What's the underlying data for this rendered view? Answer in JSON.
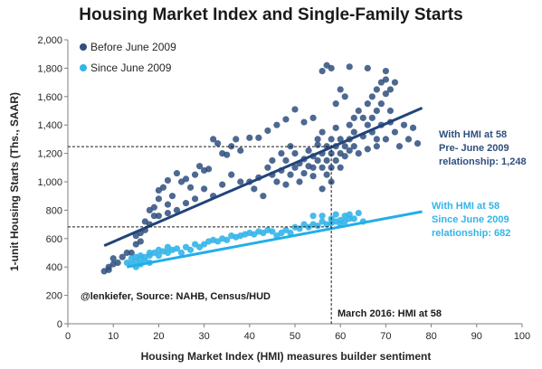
{
  "chart_data": {
    "type": "scatter",
    "title": "Housing Market Index and Single-Family  Starts",
    "xlabel": "Housing  Market Index (HMI) measures builder sentiment",
    "ylabel": "1-unit Housing Starts (Ths., SAAR)",
    "xlim": [
      0,
      100
    ],
    "ylim": [
      0,
      2000
    ],
    "x_ticks": [
      "0",
      "10",
      "20",
      "30",
      "40",
      "50",
      "60",
      "70",
      "80",
      "90",
      "100"
    ],
    "y_ticks": [
      "0",
      "200",
      "400",
      "600",
      "800",
      "1,000",
      "1,200",
      "1,400",
      "1,600",
      "1,800",
      "2,000"
    ],
    "grid": false,
    "legend_position": "top-left",
    "series": [
      {
        "name": "Before June 2009",
        "color": "#2e4f7e",
        "points": [
          [
            8,
            370
          ],
          [
            9,
            380
          ],
          [
            9,
            400
          ],
          [
            10,
            420
          ],
          [
            10,
            460
          ],
          [
            11,
            430
          ],
          [
            12,
            470
          ],
          [
            13,
            500
          ],
          [
            14,
            500
          ],
          [
            15,
            560
          ],
          [
            15,
            620
          ],
          [
            16,
            640
          ],
          [
            16,
            580
          ],
          [
            17,
            660
          ],
          [
            17,
            720
          ],
          [
            18,
            800
          ],
          [
            18,
            700
          ],
          [
            19,
            760
          ],
          [
            19,
            820
          ],
          [
            20,
            880
          ],
          [
            20,
            940
          ],
          [
            21,
            960
          ],
          [
            22,
            1010
          ],
          [
            22,
            840
          ],
          [
            23,
            900
          ],
          [
            24,
            1060
          ],
          [
            25,
            1000
          ],
          [
            26,
            1020
          ],
          [
            27,
            960
          ],
          [
            28,
            1050
          ],
          [
            29,
            1110
          ],
          [
            30,
            1080
          ],
          [
            31,
            1090
          ],
          [
            32,
            1300
          ],
          [
            33,
            1270
          ],
          [
            34,
            1200
          ],
          [
            35,
            1190
          ],
          [
            36,
            1250
          ],
          [
            37,
            1300
          ],
          [
            38,
            1220
          ],
          [
            40,
            1310
          ],
          [
            42,
            1310
          ],
          [
            44,
            1360
          ],
          [
            46,
            1400
          ],
          [
            48,
            1440
          ],
          [
            50,
            1510
          ],
          [
            52,
            1420
          ],
          [
            54,
            1450
          ],
          [
            56,
            1780
          ],
          [
            57,
            1820
          ],
          [
            58,
            1800
          ],
          [
            62,
            1810
          ],
          [
            66,
            1800
          ],
          [
            70,
            1780
          ],
          [
            40,
            1000
          ],
          [
            41,
            950
          ],
          [
            42,
            1030
          ],
          [
            43,
            900
          ],
          [
            44,
            1100
          ],
          [
            45,
            1050
          ],
          [
            46,
            1000
          ],
          [
            47,
            1080
          ],
          [
            48,
            1150
          ],
          [
            48,
            980
          ],
          [
            49,
            1050
          ],
          [
            50,
            1100
          ],
          [
            50,
            1200
          ],
          [
            51,
            1000
          ],
          [
            51,
            1130
          ],
          [
            52,
            1160
          ],
          [
            52,
            1060
          ],
          [
            53,
            1220
          ],
          [
            53,
            1110
          ],
          [
            54,
            1180
          ],
          [
            54,
            1040
          ],
          [
            55,
            1150
          ],
          [
            55,
            1260
          ],
          [
            55,
            1300
          ],
          [
            56,
            1100
          ],
          [
            56,
            1200
          ],
          [
            56,
            1350
          ],
          [
            57,
            1150
          ],
          [
            57,
            1250
          ],
          [
            57,
            1050
          ],
          [
            58,
            1200
          ],
          [
            58,
            1300
          ],
          [
            58,
            1100
          ],
          [
            59,
            1250
          ],
          [
            59,
            1150
          ],
          [
            59,
            1380
          ],
          [
            60,
            1200
          ],
          [
            60,
            1300
          ],
          [
            61,
            1250
          ],
          [
            61,
            1180
          ],
          [
            62,
            1220
          ],
          [
            62,
            1300
          ],
          [
            63,
            1250
          ],
          [
            63,
            1350
          ],
          [
            64,
            1200
          ],
          [
            64,
            1500
          ],
          [
            65,
            1450
          ],
          [
            65,
            1320
          ],
          [
            66,
            1550
          ],
          [
            66,
            1230
          ],
          [
            67,
            1600
          ],
          [
            67,
            1350
          ],
          [
            68,
            1650
          ],
          [
            68,
            1250
          ],
          [
            69,
            1700
          ],
          [
            69,
            1400
          ],
          [
            70,
            1720
          ],
          [
            70,
            1300
          ],
          [
            71,
            1650
          ],
          [
            71,
            1420
          ],
          [
            72,
            1700
          ],
          [
            72,
            1350
          ],
          [
            73,
            1250
          ],
          [
            60,
            1100
          ],
          [
            58,
            1000
          ],
          [
            56,
            950
          ],
          [
            54,
            1100
          ],
          [
            45,
            1150
          ],
          [
            47,
            1200
          ],
          [
            49,
            1250
          ],
          [
            38,
            1000
          ],
          [
            36,
            1050
          ],
          [
            34,
            980
          ],
          [
            32,
            900
          ],
          [
            30,
            950
          ],
          [
            28,
            880
          ],
          [
            26,
            850
          ],
          [
            24,
            800
          ],
          [
            22,
            780
          ],
          [
            20,
            760
          ],
          [
            63,
            1450
          ],
          [
            62,
            1400
          ],
          [
            61,
            1600
          ],
          [
            60,
            1650
          ],
          [
            59,
            1550
          ],
          [
            68,
            1300
          ],
          [
            74,
            1400
          ],
          [
            75,
            1300
          ],
          [
            76,
            1380
          ],
          [
            77,
            1270
          ],
          [
            66,
            1400
          ],
          [
            67,
            1450
          ],
          [
            68,
            1500
          ],
          [
            69,
            1550
          ],
          [
            70,
            1620
          ],
          [
            71,
            1500
          ]
        ]
      },
      {
        "name": "Since June 2009",
        "color": "#33b5e8",
        "points": [
          [
            13,
            430
          ],
          [
            14,
            420
          ],
          [
            14,
            460
          ],
          [
            15,
            440
          ],
          [
            15,
            400
          ],
          [
            16,
            460
          ],
          [
            16,
            420
          ],
          [
            17,
            470
          ],
          [
            17,
            440
          ],
          [
            18,
            430
          ],
          [
            18,
            480
          ],
          [
            19,
            500
          ],
          [
            20,
            480
          ],
          [
            21,
            510
          ],
          [
            22,
            500
          ],
          [
            23,
            520
          ],
          [
            24,
            530
          ],
          [
            25,
            500
          ],
          [
            26,
            540
          ],
          [
            27,
            520
          ],
          [
            28,
            560
          ],
          [
            29,
            540
          ],
          [
            30,
            560
          ],
          [
            31,
            580
          ],
          [
            32,
            590
          ],
          [
            33,
            580
          ],
          [
            34,
            600
          ],
          [
            35,
            590
          ],
          [
            36,
            620
          ],
          [
            37,
            610
          ],
          [
            38,
            620
          ],
          [
            39,
            630
          ],
          [
            40,
            640
          ],
          [
            41,
            630
          ],
          [
            42,
            650
          ],
          [
            43,
            640
          ],
          [
            44,
            660
          ],
          [
            45,
            650
          ],
          [
            46,
            620
          ],
          [
            47,
            640
          ],
          [
            48,
            660
          ],
          [
            49,
            640
          ],
          [
            50,
            680
          ],
          [
            51,
            670
          ],
          [
            52,
            700
          ],
          [
            53,
            680
          ],
          [
            54,
            700
          ],
          [
            55,
            690
          ],
          [
            56,
            720
          ],
          [
            57,
            700
          ],
          [
            58,
            710
          ],
          [
            58,
            740
          ],
          [
            59,
            720
          ],
          [
            60,
            730
          ],
          [
            61,
            760
          ],
          [
            62,
            770
          ],
          [
            63,
            740
          ],
          [
            64,
            780
          ],
          [
            65,
            720
          ],
          [
            16,
            480
          ],
          [
            18,
            500
          ],
          [
            20,
            520
          ],
          [
            22,
            540
          ],
          [
            15,
            470
          ],
          [
            54,
            760
          ],
          [
            56,
            760
          ],
          [
            59,
            770
          ],
          [
            60,
            700
          ],
          [
            61,
            720
          ],
          [
            62,
            740
          ]
        ]
      }
    ],
    "fit_lines": [
      {
        "series": "Before June 2009",
        "color": "#22447a",
        "x": [
          8,
          78
        ],
        "y": [
          550,
          1520
        ]
      },
      {
        "series": "Since June 2009",
        "color": "#22aee8",
        "x": [
          13,
          78
        ],
        "y": [
          400,
          790
        ]
      }
    ],
    "reference_lines": [
      {
        "type": "vertical",
        "x": 58,
        "y_top": 1248
      },
      {
        "type": "horizontal",
        "y": 1248,
        "x_end": 58
      },
      {
        "type": "horizontal",
        "y": 682,
        "x_end": 58
      }
    ],
    "annotations": {
      "pre_2009": {
        "lines": [
          "With HMI  at 58",
          "Pre- June 2009",
          "relationship:  1,248"
        ],
        "color": "#2e4f7e"
      },
      "post_2009": {
        "lines": [
          "With HMI  at 58",
          "Since June 2009",
          "relationship:  682"
        ],
        "color": "#33b5e8"
      },
      "march_2016": "March 2016: HMI at 58",
      "source": "@lenkiefer, Source: NAHB,  Census/HUD"
    }
  }
}
